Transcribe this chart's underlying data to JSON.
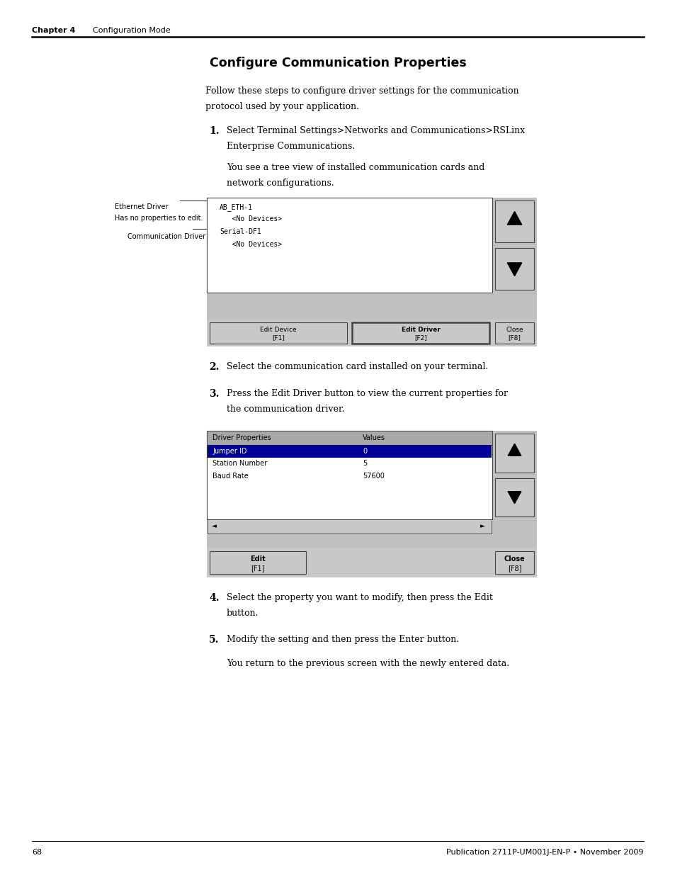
{
  "background_color": "#ffffff",
  "page_width": 9.54,
  "page_height": 12.35,
  "dpi": 100,
  "header_chapter": "Chapter 4",
  "header_title": "    Configuration Mode",
  "footer_page": "68",
  "footer_pub": "Publication 2711P-UM001J-EN-P • November 2009",
  "section_title": "Configure Communication Properties",
  "intro_text_line1": "Follow these steps to configure driver settings for the communication",
  "intro_text_line2": "protocol used by your application.",
  "step1_num": "1.",
  "step1_line1": "Select Terminal Settings>Networks and Communications>RSLinx",
  "step1_line2": "Enterprise Communications.",
  "step1_sub1": "You see a tree view of installed communication cards and",
  "step1_sub2": "network configurations.",
  "eth_label_line1": "Ethernet Driver",
  "eth_label_line2": "Has no properties to edit.",
  "comm_label": "Communication Driver",
  "diagram1_tree": [
    "AB_ETH-1",
    "   <No Devices>",
    "Serial-DF1",
    "   <No Devices>"
  ],
  "diagram1_buttons": [
    {
      "label1": "Edit Device",
      "label2": "[F1]",
      "bold": false
    },
    {
      "label1": "Edit Driver",
      "label2": "[F2]",
      "bold": true
    },
    {
      "label1": "Close",
      "label2": "[F8]",
      "bold": false
    }
  ],
  "step2_num": "2.",
  "step2_text": "Select the communication card installed on your terminal.",
  "step3_num": "3.",
  "step3_line1": "Press the Edit Driver button to view the current properties for",
  "step3_line2": "the communication driver.",
  "diagram2_header1": "Driver Properties",
  "diagram2_header2": "Values",
  "diagram2_rows": [
    [
      "Jumper ID",
      "0"
    ],
    [
      "Station Number",
      "5"
    ],
    [
      "Baud Rate",
      "57600"
    ]
  ],
  "diagram2_buttons": [
    {
      "label1": "Edit",
      "label2": "[F1]",
      "bold": false
    },
    {
      "label1": "Close",
      "label2": "[F8]",
      "bold": false
    }
  ],
  "step4_num": "4.",
  "step4_line1": "Select the property you want to modify, then press the Edit",
  "step4_line2": "button.",
  "step5_num": "5.",
  "step5_text": "Modify the setting and then press the Enter button.",
  "step5_sub": "You return to the previous screen with the newly entered data.",
  "colors": {
    "header_line": "#000000",
    "text": "#000000",
    "light_gray": "#c0c0c0",
    "mid_gray": "#a8a8a8",
    "btn_gray": "#c8c8c8",
    "white": "#ffffff",
    "box_border": "#444444",
    "selected_row": "#000099",
    "selected_text": "#ffffff",
    "ann_line": "#333333"
  }
}
